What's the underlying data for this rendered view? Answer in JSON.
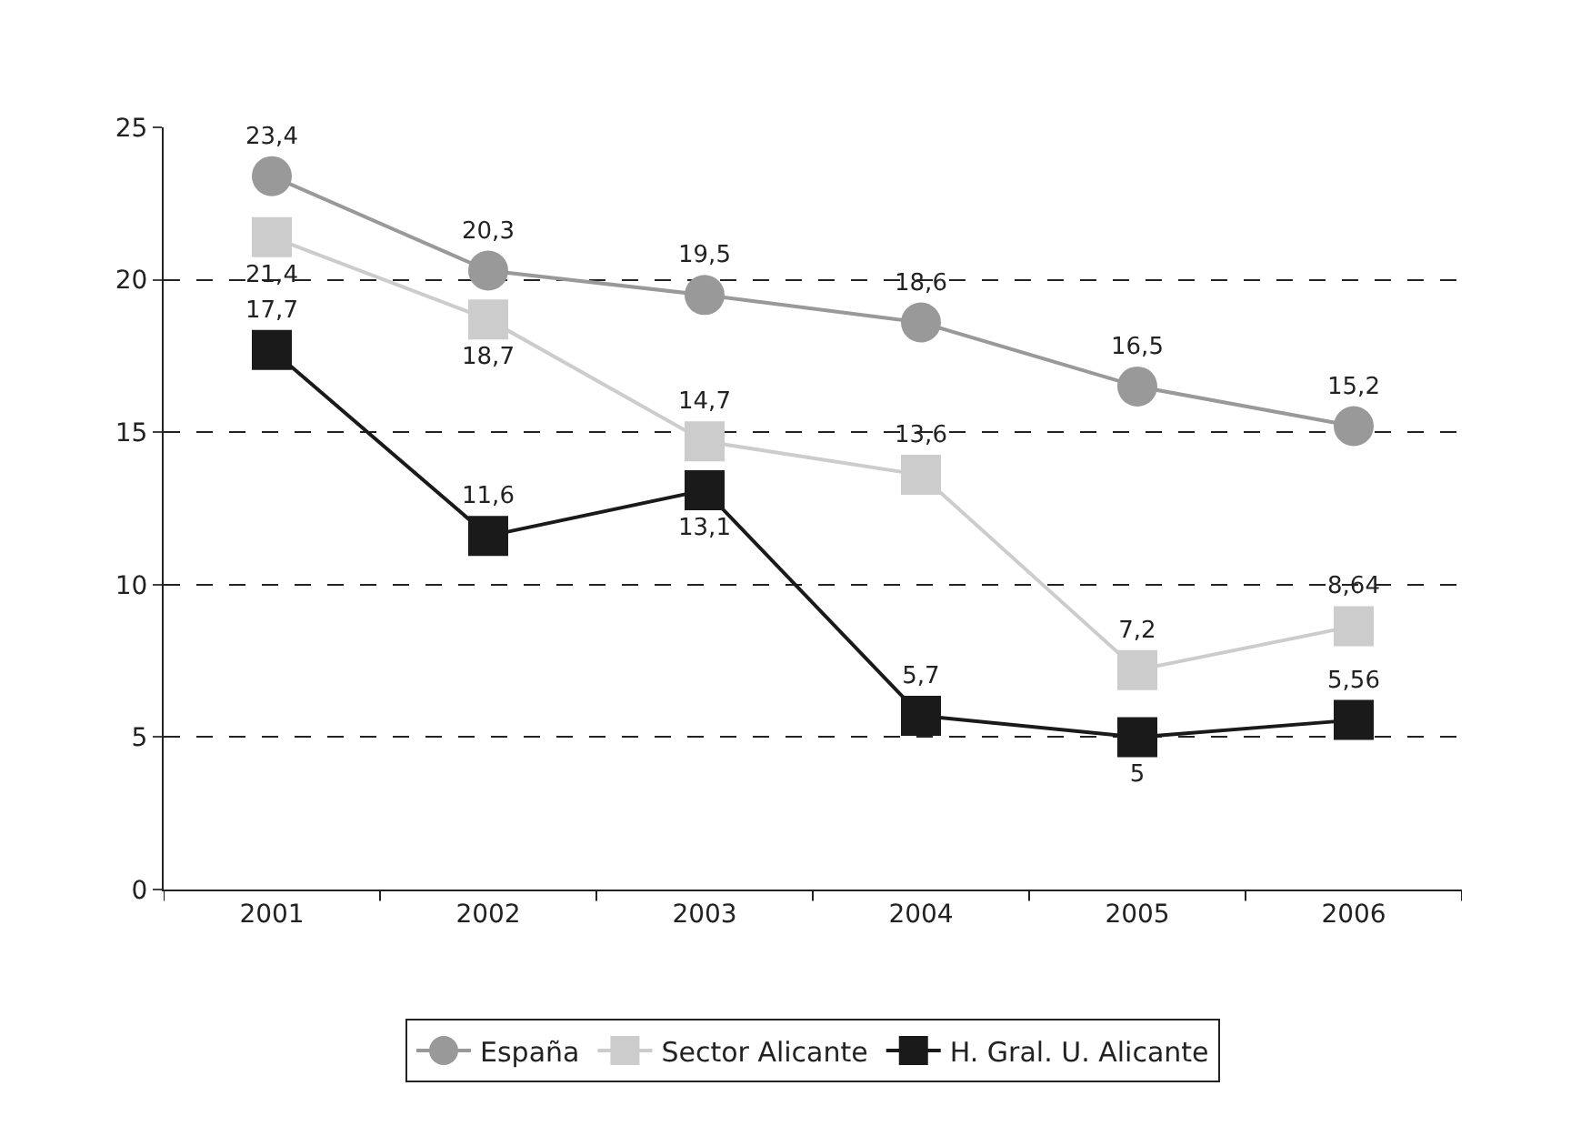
{
  "chart_data": {
    "type": "line",
    "categories": [
      "2001",
      "2002",
      "2003",
      "2004",
      "2005",
      "2006"
    ],
    "series": [
      {
        "name": "España",
        "color": "#999999",
        "marker": "circle",
        "values": [
          23.4,
          20.3,
          19.5,
          18.6,
          16.5,
          15.2
        ],
        "value_labels": [
          "23,4",
          "20,3",
          "19,5",
          "18,6",
          "16,5",
          "15,2"
        ]
      },
      {
        "name": "Sector Alicante",
        "color": "#cccccc",
        "marker": "square",
        "values": [
          21.4,
          18.7,
          14.7,
          13.6,
          7.2,
          8.64
        ],
        "value_labels": [
          "21,4",
          "18,7",
          "14,7",
          "13,6",
          "7,2",
          "8,64"
        ]
      },
      {
        "name": "H. Gral. U. Alicante",
        "color": "#1a1a1a",
        "marker": "square",
        "values": [
          17.7,
          11.6,
          13.1,
          5.7,
          5,
          5.56
        ],
        "value_labels": [
          "17,7",
          "11,6",
          "13,1",
          "5,7",
          "5",
          "5,56"
        ]
      }
    ],
    "ylim": [
      0,
      25
    ],
    "yticks": [
      0,
      5,
      10,
      15,
      20,
      25
    ],
    "grid": "y",
    "line_style": "solid",
    "legend": "bottom"
  }
}
